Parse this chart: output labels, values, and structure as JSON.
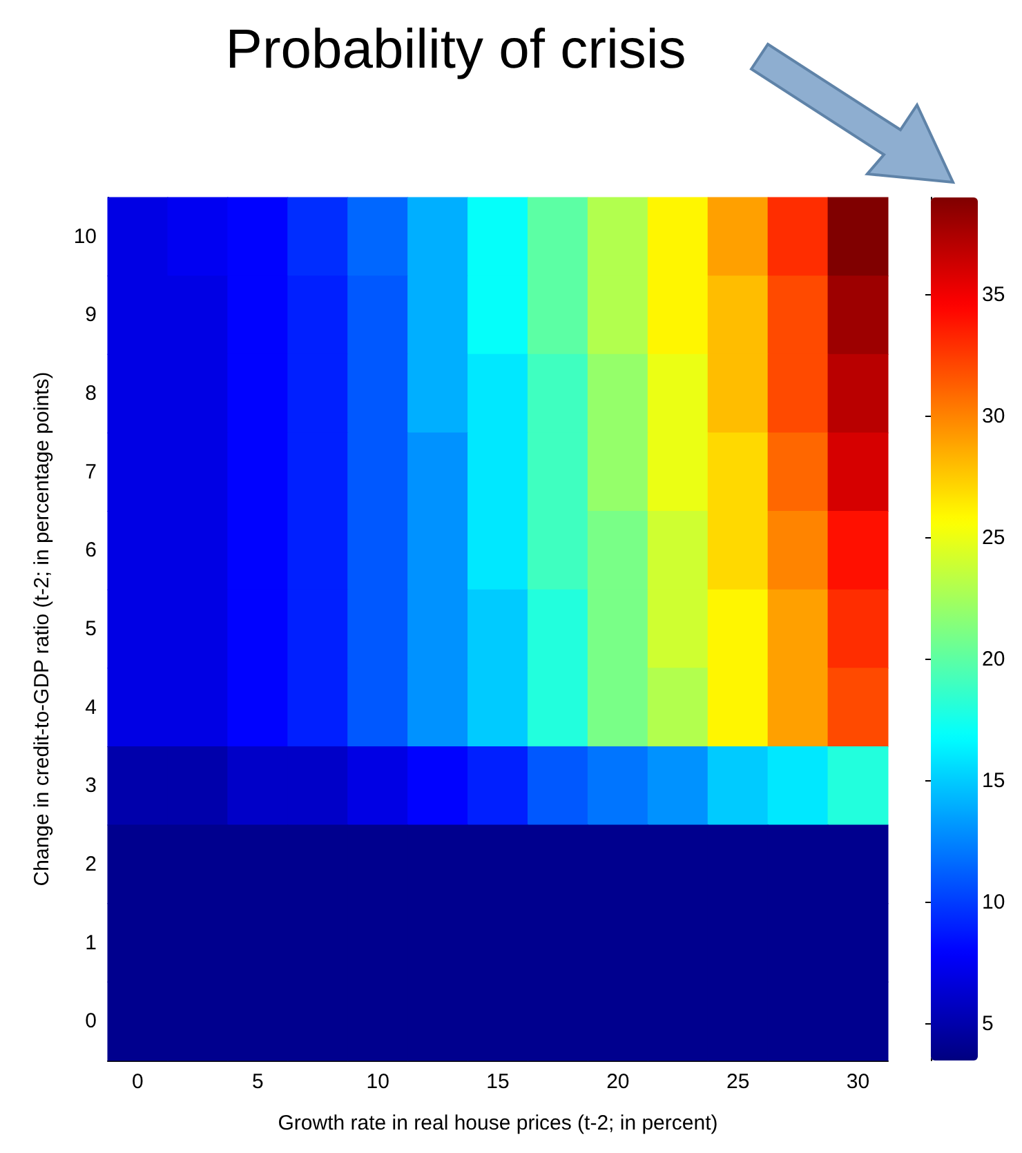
{
  "chart_data": {
    "type": "heatmap",
    "title": "Probability of crisis",
    "xlabel": "Growth rate in real house prices (t-2; in percent)",
    "ylabel": "Change in credit-to-GDP ratio (t-2; in percentage points)",
    "categories": [
      "0",
      null,
      "5",
      null,
      "10",
      null,
      "15",
      null,
      "20",
      null,
      "25",
      null,
      "30"
    ],
    "y_categories": [
      "10",
      "9",
      "8",
      "7",
      "6",
      "5",
      "4",
      "3",
      "2",
      "1",
      "0"
    ],
    "cells": [
      [
        7,
        7.5,
        8,
        9.5,
        11.5,
        14,
        17,
        20,
        23,
        26,
        29,
        33,
        39
      ],
      [
        7,
        7,
        8,
        9,
        11,
        14,
        17,
        20,
        23,
        26,
        28,
        32,
        38
      ],
      [
        7,
        7,
        8,
        9,
        11,
        14,
        16,
        19,
        22,
        25,
        28,
        32,
        37
      ],
      [
        7,
        7,
        8,
        9,
        11,
        13,
        16,
        19,
        22,
        25,
        27,
        31,
        36
      ],
      [
        7,
        7,
        8,
        9,
        11,
        13,
        16,
        19,
        21,
        24,
        27,
        30,
        34
      ],
      [
        7,
        7,
        8,
        9,
        11,
        13,
        15,
        18,
        21,
        24,
        26,
        29,
        33
      ],
      [
        7,
        7,
        8,
        9,
        11,
        13,
        15,
        18,
        21,
        23,
        26,
        29,
        32
      ],
      [
        5,
        5,
        6,
        6,
        7,
        8,
        9,
        11,
        12,
        13,
        15,
        16,
        18
      ],
      [
        4,
        4,
        4,
        4,
        4,
        4,
        4,
        4,
        4,
        4,
        4,
        4,
        4
      ],
      [
        4,
        4,
        4,
        4,
        4,
        4,
        4,
        4,
        4,
        4,
        4,
        4,
        4
      ],
      [
        4,
        4,
        4,
        4,
        4,
        4,
        4,
        4,
        4,
        4,
        4,
        4,
        4
      ]
    ],
    "clim": [
      3.5,
      39
    ],
    "cticks": [
      5,
      10,
      15,
      20,
      25,
      30,
      35
    ],
    "grid": false
  }
}
